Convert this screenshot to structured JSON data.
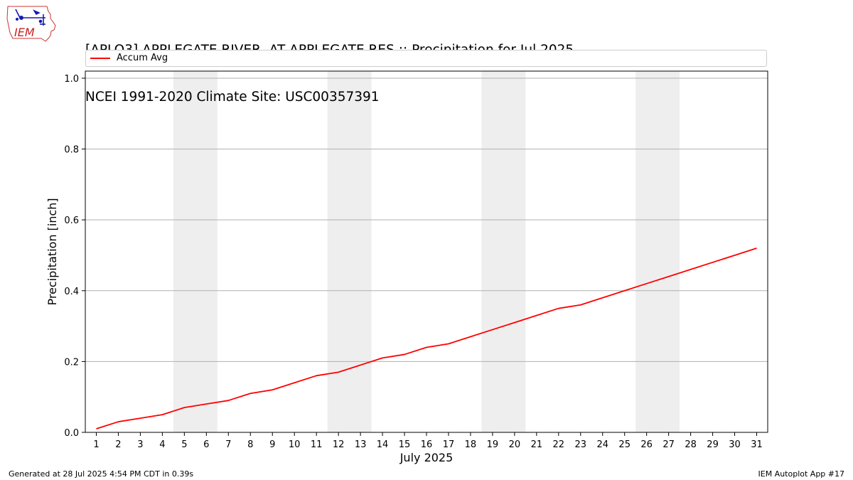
{
  "header": {
    "title_line1": "[APLO3] APPLEGATE RIVER  AT APPLEGATE RES :: Precipitation for Jul 2025",
    "title_line2": "NCEI 1991-2020 Climate Site: USC00357391"
  },
  "logo": {
    "text": "IEM",
    "icon": "iem-iowa-weather-logo"
  },
  "footer": {
    "generated": "Generated at 28 Jul 2025 4:54 PM CDT in 0.39s",
    "app": "IEM Autoplot App #17"
  },
  "colors": {
    "series": "#ff0000",
    "weekend_band": "#eeeeee",
    "grid": "#b0b0b0"
  },
  "chart_data": {
    "type": "line",
    "title": "[APLO3] APPLEGATE RIVER  AT APPLEGATE RES :: Precipitation for Jul 2025",
    "subtitle": "NCEI 1991-2020 Climate Site: USC00357391",
    "xlabel": "July 2025",
    "ylabel": "Precipitation [inch]",
    "x": [
      1,
      2,
      3,
      4,
      5,
      6,
      7,
      8,
      9,
      10,
      11,
      12,
      13,
      14,
      15,
      16,
      17,
      18,
      19,
      20,
      21,
      22,
      23,
      24,
      25,
      26,
      27,
      28,
      29,
      30,
      31
    ],
    "xlim": [
      0.5,
      31.5
    ],
    "ylim": [
      0,
      1.02
    ],
    "yticks": [
      0.0,
      0.2,
      0.4,
      0.6,
      0.8,
      1.0
    ],
    "ytick_labels": [
      "0.0",
      "0.2",
      "0.4",
      "0.6",
      "0.8",
      "1.0"
    ],
    "grid": "y",
    "legend": "top",
    "shaded_weekends": [
      [
        5,
        6
      ],
      [
        12,
        13
      ],
      [
        19,
        20
      ],
      [
        26,
        27
      ]
    ],
    "series": [
      {
        "name": "Accum Avg",
        "color": "#ff0000",
        "values": [
          0.01,
          0.03,
          0.04,
          0.05,
          0.07,
          0.08,
          0.09,
          0.11,
          0.12,
          0.14,
          0.16,
          0.17,
          0.19,
          0.21,
          0.22,
          0.24,
          0.25,
          0.27,
          0.29,
          0.31,
          0.33,
          0.35,
          0.36,
          0.38,
          0.4,
          0.42,
          0.44,
          0.46,
          0.48,
          0.5,
          0.52
        ]
      }
    ]
  }
}
